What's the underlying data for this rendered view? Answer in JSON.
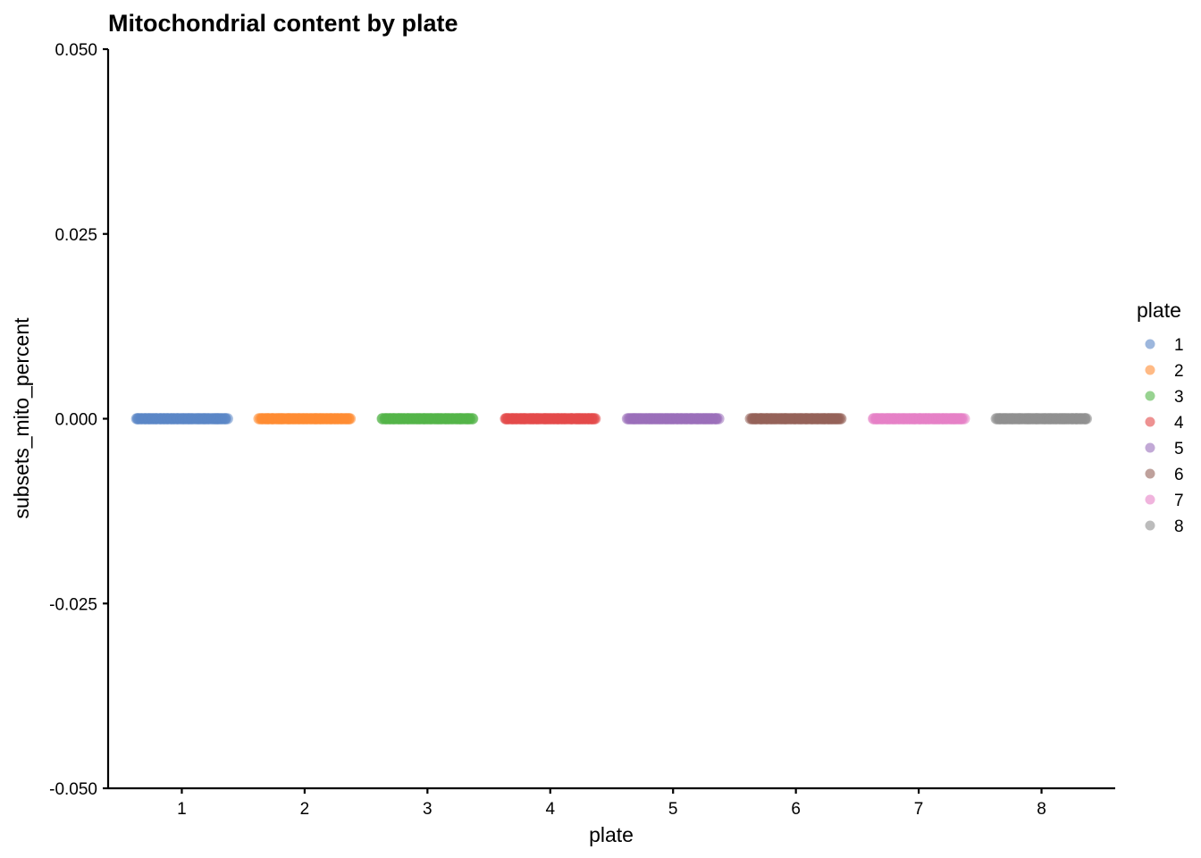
{
  "chart_data": {
    "type": "scatter",
    "title": "Mitochondrial content by plate",
    "xlabel": "plate",
    "ylabel": "subsets_mito_percent",
    "categories": [
      "1",
      "2",
      "3",
      "4",
      "5",
      "6",
      "7",
      "8"
    ],
    "yticks": [
      "-0.050",
      "-0.025",
      "0.000",
      "0.025",
      "0.050"
    ],
    "ylim": [
      -0.05,
      0.05
    ],
    "grid": false,
    "legend": {
      "title": "plate",
      "placement": "right",
      "labels": [
        "1",
        "2",
        "3",
        "4",
        "5",
        "6",
        "7",
        "8"
      ]
    },
    "series": [
      {
        "name": "1",
        "x": "1",
        "y": 0.0,
        "jitter_width": 0.8,
        "color": "#5B87C6"
      },
      {
        "name": "2",
        "x": "2",
        "y": 0.0,
        "jitter_width": 0.8,
        "color": "#FF8C33"
      },
      {
        "name": "3",
        "x": "3",
        "y": 0.0,
        "jitter_width": 0.8,
        "color": "#53B548"
      },
      {
        "name": "4",
        "x": "4",
        "y": 0.0,
        "jitter_width": 0.8,
        "color": "#E34A4A"
      },
      {
        "name": "5",
        "x": "5",
        "y": 0.0,
        "jitter_width": 0.8,
        "color": "#9A6FBA"
      },
      {
        "name": "6",
        "x": "6",
        "y": 0.0,
        "jitter_width": 0.8,
        "color": "#95625A"
      },
      {
        "name": "7",
        "x": "7",
        "y": 0.0,
        "jitter_width": 0.8,
        "color": "#E682C6"
      },
      {
        "name": "8",
        "x": "8",
        "y": 0.0,
        "jitter_width": 0.8,
        "color": "#8F8F8F"
      }
    ]
  }
}
